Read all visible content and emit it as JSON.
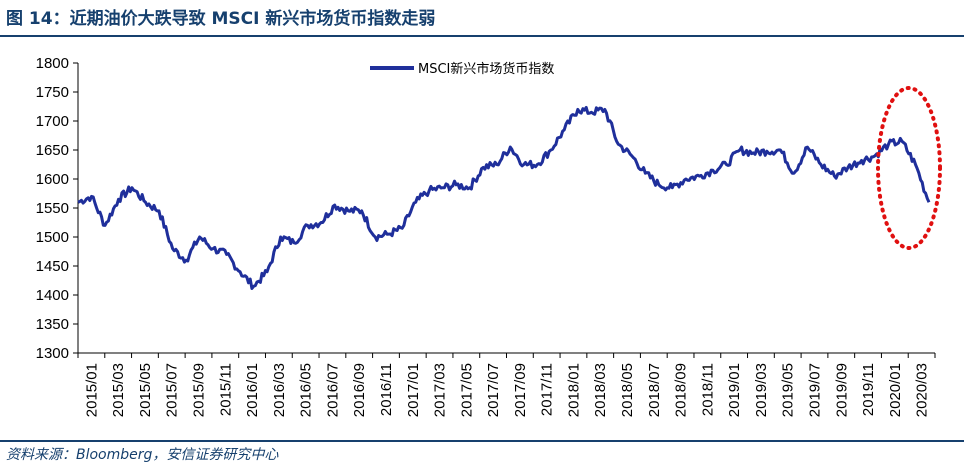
{
  "header": {
    "title": "图 14：近期油价大跌导致 MSCI 新兴市场货币指数走弱"
  },
  "footer": {
    "source": "资料来源：Bloomberg，安信证券研究中心"
  },
  "colors": {
    "series": "#1f2f9b",
    "highlight": "#e01010",
    "header": "#16406e"
  },
  "chart_data": {
    "type": "line",
    "title": "",
    "xlabel": "",
    "ylabel": "",
    "ylim": [
      1300,
      1800
    ],
    "yticks": [
      "1300",
      "1350",
      "1400",
      "1450",
      "1500",
      "1550",
      "1600",
      "1650",
      "1700",
      "1750",
      "1800"
    ],
    "xticks": [
      "2015/01",
      "2015/03",
      "2015/05",
      "2015/07",
      "2015/09",
      "2015/11",
      "2016/01",
      "2016/03",
      "2016/05",
      "2016/07",
      "2016/09",
      "2016/11",
      "2017/01",
      "2017/03",
      "2017/05",
      "2017/07",
      "2017/09",
      "2017/11",
      "2018/01",
      "2018/03",
      "2018/05",
      "2018/07",
      "2018/09",
      "2018/11",
      "2019/01",
      "2019/03",
      "2019/05",
      "2019/07",
      "2019/09",
      "2019/11",
      "2020/01",
      "2020/03"
    ],
    "legend": {
      "position": "top-center"
    },
    "grid": false,
    "annotation": {
      "shape": "dotted-ellipse",
      "highlights": "2020/01 – 2020/04 decline"
    },
    "series": [
      {
        "name": "MSCI新兴市场货币指数",
        "x": [
          "2015/01",
          "2015/02",
          "2015/03",
          "2015/04",
          "2015/05",
          "2015/06",
          "2015/07",
          "2015/08",
          "2015/09",
          "2015/10",
          "2015/11",
          "2015/12",
          "2016/01",
          "2016/02",
          "2016/03",
          "2016/04",
          "2016/05",
          "2016/06",
          "2016/07",
          "2016/08",
          "2016/09",
          "2016/10",
          "2016/11",
          "2016/12",
          "2017/01",
          "2017/02",
          "2017/03",
          "2017/04",
          "2017/05",
          "2017/06",
          "2017/07",
          "2017/08",
          "2017/09",
          "2017/10",
          "2017/11",
          "2017/12",
          "2018/01",
          "2018/02",
          "2018/03",
          "2018/04",
          "2018/05",
          "2018/06",
          "2018/07",
          "2018/08",
          "2018/09",
          "2018/10",
          "2018/11",
          "2018/12",
          "2019/01",
          "2019/02",
          "2019/03",
          "2019/04",
          "2019/05",
          "2019/06",
          "2019/07",
          "2019/08",
          "2019/09",
          "2019/10",
          "2019/11",
          "2019/12",
          "2020/01",
          "2020/02",
          "2020/03",
          "2020/04"
        ],
        "values": [
          1560,
          1570,
          1520,
          1565,
          1585,
          1560,
          1545,
          1480,
          1460,
          1500,
          1480,
          1470,
          1440,
          1415,
          1440,
          1500,
          1490,
          1520,
          1525,
          1555,
          1545,
          1545,
          1500,
          1505,
          1515,
          1560,
          1580,
          1585,
          1590,
          1585,
          1620,
          1625,
          1655,
          1625,
          1625,
          1650,
          1685,
          1720,
          1715,
          1720,
          1660,
          1640,
          1610,
          1590,
          1585,
          1600,
          1605,
          1615,
          1625,
          1650,
          1645,
          1648,
          1650,
          1610,
          1655,
          1625,
          1605,
          1620,
          1632,
          1640,
          1660,
          1665,
          1625,
          1560
        ]
      }
    ]
  }
}
